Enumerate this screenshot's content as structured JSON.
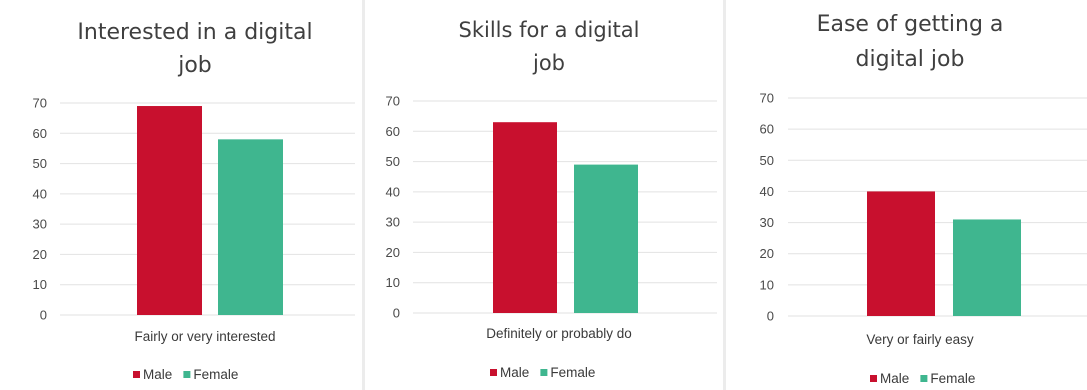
{
  "colors": {
    "male": "#c8102e",
    "female": "#3fb68f",
    "grid": "#e2e2e2"
  },
  "chart_data": [
    {
      "type": "bar",
      "title": [
        "Interested in a digital",
        "job"
      ],
      "categories": [
        "Fairly or very interested"
      ],
      "series": [
        {
          "name": "Male",
          "values": [
            69
          ]
        },
        {
          "name": "Female",
          "values": [
            58
          ]
        }
      ],
      "ylim": [
        0,
        70
      ],
      "yticks": [
        0,
        10,
        20,
        30,
        40,
        50,
        60,
        70
      ],
      "grid": true,
      "legend": "bottom"
    },
    {
      "type": "bar",
      "title": [
        "Skills for a digital",
        "job"
      ],
      "categories": [
        "Definitely or probably do"
      ],
      "series": [
        {
          "name": "Male",
          "values": [
            63
          ]
        },
        {
          "name": "Female",
          "values": [
            49
          ]
        }
      ],
      "ylim": [
        0,
        70
      ],
      "yticks": [
        0,
        10,
        20,
        30,
        40,
        50,
        60,
        70
      ],
      "grid": true,
      "legend": "bottom"
    },
    {
      "type": "bar",
      "title": [
        "Ease of getting a",
        "digital job"
      ],
      "categories": [
        "Very or fairly easy"
      ],
      "series": [
        {
          "name": "Male",
          "values": [
            40
          ]
        },
        {
          "name": "Female",
          "values": [
            31
          ]
        }
      ],
      "ylim": [
        0,
        70
      ],
      "yticks": [
        0,
        10,
        20,
        30,
        40,
        50,
        60,
        70
      ],
      "grid": true,
      "legend": "bottom"
    }
  ]
}
